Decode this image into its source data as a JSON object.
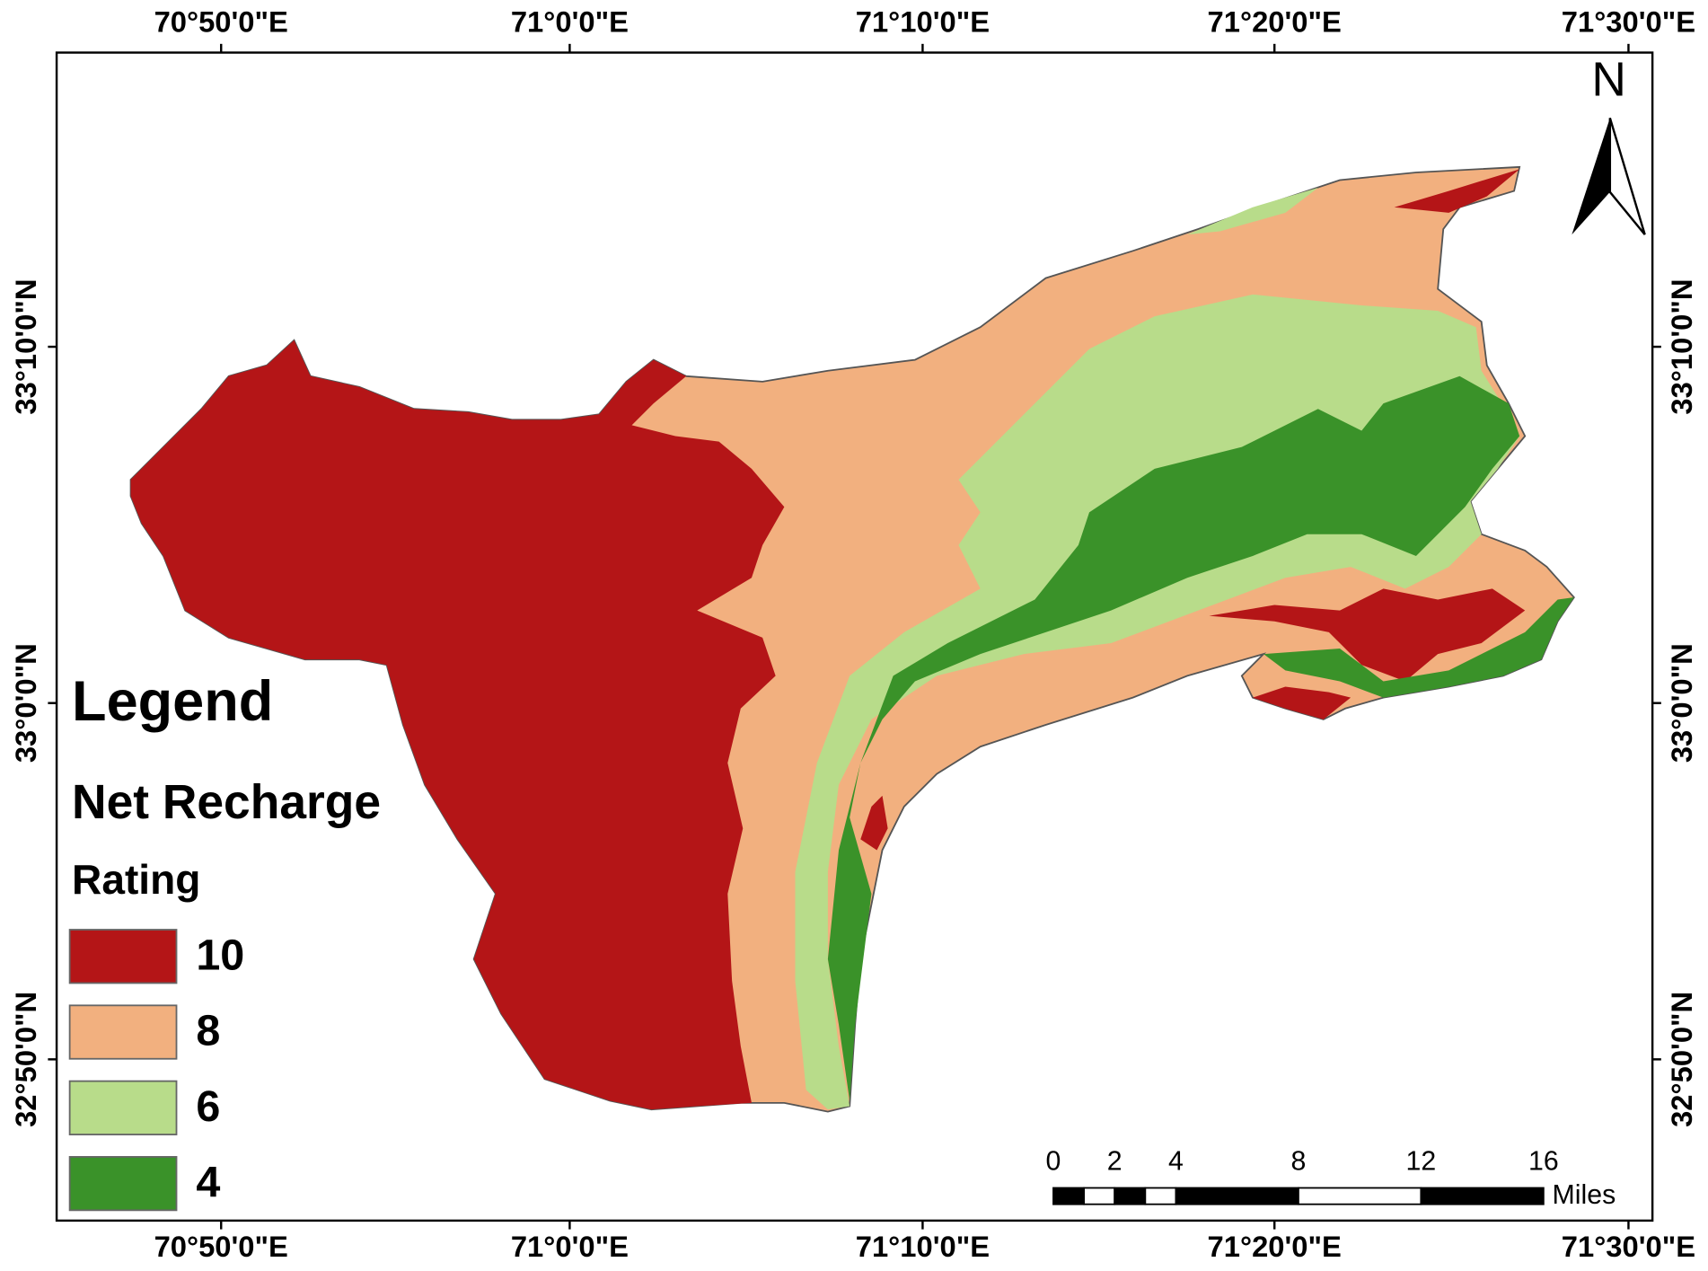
{
  "coordinates": {
    "top": [
      "70°50'0\"E",
      "71°0'0\"E",
      "71°10'0\"E",
      "71°20'0\"E",
      "71°30'0\"E"
    ],
    "bottom": [
      "70°50'0\"E",
      "71°0'0\"E",
      "71°10'0\"E",
      "71°20'0\"E",
      "71°30'0\"E"
    ],
    "left": [
      "33°10'0\"N",
      "33°0'0\"N",
      "32°50'0\"N"
    ],
    "right": [
      "33°10'0\"N",
      "33°0'0\"N",
      "32°50'0\"N"
    ]
  },
  "north": "N",
  "legend": {
    "title": "Legend",
    "subtitle": "Net Recharge",
    "field": "Rating",
    "items": [
      {
        "label": "10",
        "color": "#b41517"
      },
      {
        "label": "8",
        "color": "#f2b07f"
      },
      {
        "label": "6",
        "color": "#b8dc8a"
      },
      {
        "label": "4",
        "color": "#3a9229"
      }
    ]
  },
  "scale_bar": {
    "ticks": [
      0,
      2,
      4,
      8,
      12,
      16
    ],
    "unit": "Miles"
  }
}
